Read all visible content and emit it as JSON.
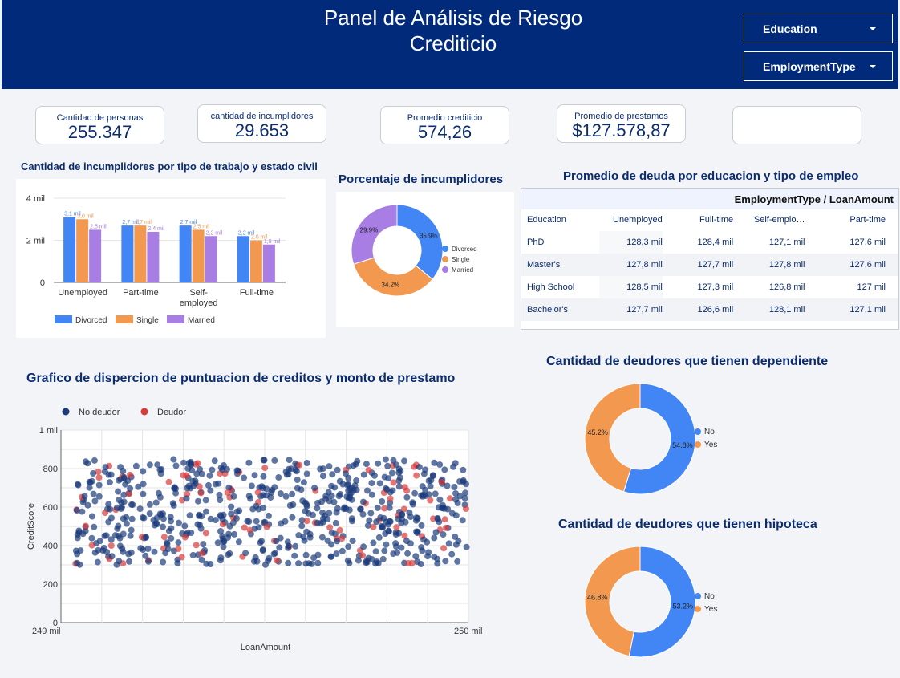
{
  "header": {
    "title_line1": "Panel de Análisis de Riesgo",
    "title_line2": "Crediticio",
    "filters": [
      {
        "label": "Education"
      },
      {
        "label": "EmploymentType"
      }
    ]
  },
  "kpis": [
    {
      "label": "Cantidad de personas",
      "value": "255.347"
    },
    {
      "label": "cantidad de incumplidores",
      "value": "29.653"
    },
    {
      "label": "Promedio crediticio",
      "value": "574,26"
    },
    {
      "label": "Promedio de prestamos",
      "value": "$127.578,87"
    }
  ],
  "colors": {
    "blue": "#4285f4",
    "orange": "#f3994f",
    "purple": "#a87ee4",
    "navy": "#0b2c6e",
    "scatter_no": "#1b3a7a",
    "scatter_yes": "#d93b3b"
  },
  "bar_section": {
    "title": "Cantidad de incumplidores por tipo de trabajo y estado civil"
  },
  "pie_section": {
    "title": "Porcentaje de incumplidores"
  },
  "table_section": {
    "title": "Promedio de deuda por educacion y tipo de empleo",
    "header": "EmploymentType / LoanAmount",
    "col_headers": [
      "Education",
      "Unemployed",
      "Full-time",
      "Self-emplo…",
      "Part-time"
    ],
    "rows": [
      [
        "PhD",
        "128,3 mil",
        "128,4 mil",
        "127,1 mil",
        "127,6 mil"
      ],
      [
        "Master's",
        "127,8 mil",
        "127,7 mil",
        "127,8 mil",
        "127,6 mil"
      ],
      [
        "High School",
        "128,5 mil",
        "127,3 mil",
        "126,8 mil",
        "127 mil"
      ],
      [
        "Bachelor's",
        "127,7 mil",
        "126,6 mil",
        "128,1 mil",
        "127,1 mil"
      ]
    ]
  },
  "scatter_section": {
    "title": "Grafico de dispercion de puntuacion de creditos y monto de prestamo"
  },
  "dependents_section": {
    "title": "Cantidad de deudores que tienen dependiente"
  },
  "mortgage_section": {
    "title": "Cantidad de deudores que tienen hipoteca"
  },
  "chart_data": [
    {
      "type": "bar",
      "title": "Cantidad de incumplidores por tipo de trabajo y estado civil",
      "categories": [
        "Unemployed",
        "Part-time",
        "Self-employed",
        "Full-time"
      ],
      "category_labels": [
        [
          "Unemployed"
        ],
        [
          "Part-time"
        ],
        [
          "Self-",
          "employed"
        ],
        [
          "Full-time"
        ]
      ],
      "series": [
        {
          "name": "Divorced",
          "values": [
            3100,
            2700,
            2700,
            2200
          ],
          "labels": [
            "3,1 mil",
            "2,7 mil",
            "2,7 mil",
            "2,2 mil"
          ]
        },
        {
          "name": "Single",
          "values": [
            3000,
            2700,
            2500,
            2000
          ],
          "labels": [
            "3,0 mil",
            "2,7 mil",
            "2,5 mil",
            "2,0 mil"
          ]
        },
        {
          "name": "Married",
          "values": [
            2500,
            2400,
            2200,
            1800
          ],
          "labels": [
            "2,5 mil",
            "2,4 mil",
            "2,2 mil",
            "1,8 mil"
          ]
        }
      ],
      "yticks": [
        "0",
        "2 mil",
        "4 mil"
      ],
      "ylim": [
        0,
        4000
      ],
      "legend": "bottom"
    },
    {
      "type": "pie",
      "title": "Porcentaje de incumplidores",
      "labels": [
        "Divorced",
        "Single",
        "Married"
      ],
      "values": [
        35.9,
        34.2,
        29.9
      ],
      "value_labels": [
        "35.9%",
        "34.2%",
        "29.9%"
      ],
      "legend": "right"
    },
    {
      "type": "scatter",
      "title": "Grafico de dispercion de puntuacion de creditos y monto de prestamo",
      "xlabel": "LoanAmount",
      "ylabel": "CreditScore",
      "xlim": [
        249000,
        250000
      ],
      "ylim": [
        0,
        1000
      ],
      "x_tick_labels": [
        "249 mil",
        "250 mil"
      ],
      "y_tick_labels": [
        "0",
        "200",
        "400",
        "600",
        "800",
        "1 mil"
      ],
      "series": [
        {
          "name": "No deudor"
        },
        {
          "name": "Deudor"
        }
      ],
      "point_y_range": [
        300,
        850
      ],
      "approx_points": 700,
      "legend": "top-left"
    },
    {
      "type": "pie",
      "title": "Cantidad de deudores que tienen dependiente",
      "labels": [
        "No",
        "Yes"
      ],
      "values": [
        54.8,
        45.2
      ],
      "value_labels": [
        "54.8%",
        "45.2%"
      ],
      "legend": "right"
    },
    {
      "type": "pie",
      "title": "Cantidad de deudores que tienen hipoteca",
      "labels": [
        "No",
        "Yes"
      ],
      "values": [
        53.2,
        46.8
      ],
      "value_labels": [
        "53.2%",
        "46.8%"
      ],
      "legend": "right"
    }
  ]
}
